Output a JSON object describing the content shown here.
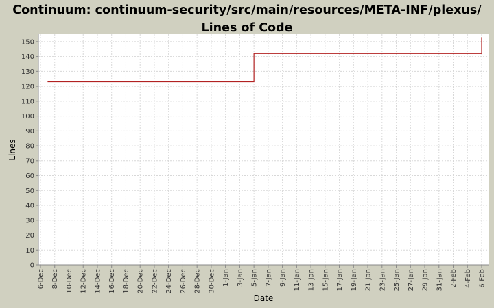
{
  "chart_data": {
    "type": "step-line",
    "title": "Continuum: continuum-security/src/main/resources/META-INF/plexus/ Lines of Code",
    "x_label": "Date",
    "y_label": "Lines",
    "series": [
      {
        "name": "Lines",
        "color": "#b22222",
        "x": [
          "7-Dec",
          "5-Jan",
          "6-Feb"
        ],
        "values": [
          123,
          142,
          153
        ]
      }
    ],
    "xticks": [
      "6-Dec",
      "8-Dec",
      "10-Dec",
      "12-Dec",
      "14-Dec",
      "16-Dec",
      "18-Dec",
      "20-Dec",
      "22-Dec",
      "24-Dec",
      "26-Dec",
      "28-Dec",
      "30-Dec",
      "1-Jan",
      "3-Jan",
      "5-Jan",
      "7-Jan",
      "9-Jan",
      "11-Jan",
      "13-Jan",
      "15-Jan",
      "17-Jan",
      "19-Jan",
      "21-Jan",
      "23-Jan",
      "25-Jan",
      "27-Jan",
      "29-Jan",
      "31-Jan",
      "2-Feb",
      "4-Feb",
      "6-Feb"
    ],
    "ylim": [
      0,
      155
    ],
    "yticks": [
      0,
      10,
      20,
      30,
      40,
      50,
      60,
      70,
      80,
      90,
      100,
      110,
      120,
      130,
      140,
      150
    ],
    "grid": true
  }
}
